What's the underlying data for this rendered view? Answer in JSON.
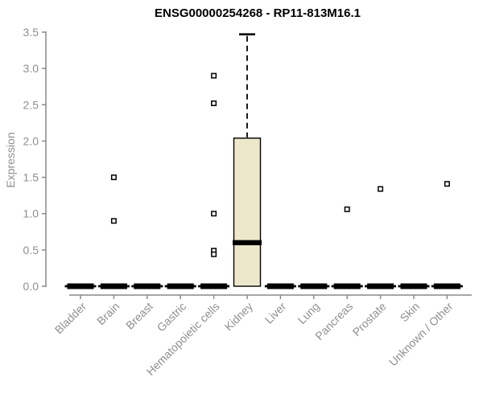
{
  "chart_data": {
    "type": "boxplot",
    "title": "ENSG00000254268 - RP11-813M16.1",
    "ylabel": "Expression",
    "xlabel": "",
    "ylim": [
      0,
      3.5
    ],
    "yticks": [
      0.0,
      0.5,
      1.0,
      1.5,
      2.0,
      2.5,
      3.0,
      3.5
    ],
    "grid": "off",
    "legend": "none",
    "categories": [
      "Bladder",
      "Brain",
      "Breast",
      "Gastric",
      "Hematopoietic cells",
      "Kidney",
      "Liver",
      "Lung",
      "Pancreas",
      "Prostate",
      "Skin",
      "Unknown / Other"
    ],
    "boxes": [
      {
        "category": "Bladder",
        "low": 0,
        "q1": 0,
        "median": 0,
        "q3": 0,
        "high": 0,
        "outliers": []
      },
      {
        "category": "Brain",
        "low": 0,
        "q1": 0,
        "median": 0,
        "q3": 0,
        "high": 0,
        "outliers": [
          1.5,
          0.9
        ]
      },
      {
        "category": "Breast",
        "low": 0,
        "q1": 0,
        "median": 0,
        "q3": 0,
        "high": 0,
        "outliers": []
      },
      {
        "category": "Gastric",
        "low": 0,
        "q1": 0,
        "median": 0,
        "q3": 0,
        "high": 0,
        "outliers": []
      },
      {
        "category": "Hematopoietic cells",
        "low": 0,
        "q1": 0,
        "median": 0,
        "q3": 0,
        "high": 0,
        "outliers": [
          2.9,
          2.52,
          1.0,
          0.49,
          0.44
        ]
      },
      {
        "category": "Kidney",
        "low": 0,
        "q1": 0,
        "median": 0.6,
        "q3": 2.04,
        "high": 3.47,
        "outliers": []
      },
      {
        "category": "Liver",
        "low": 0,
        "q1": 0,
        "median": 0,
        "q3": 0,
        "high": 0,
        "outliers": []
      },
      {
        "category": "Lung",
        "low": 0,
        "q1": 0,
        "median": 0,
        "q3": 0,
        "high": 0,
        "outliers": []
      },
      {
        "category": "Pancreas",
        "low": 0,
        "q1": 0,
        "median": 0,
        "q3": 0,
        "high": 0,
        "outliers": [
          1.06
        ]
      },
      {
        "category": "Prostate",
        "low": 0,
        "q1": 0,
        "median": 0,
        "q3": 0,
        "high": 0,
        "outliers": [
          1.34
        ]
      },
      {
        "category": "Skin",
        "low": 0,
        "q1": 0,
        "median": 0,
        "q3": 0,
        "high": 0,
        "outliers": []
      },
      {
        "category": "Unknown / Other",
        "low": 0,
        "q1": 0,
        "median": 0,
        "q3": 0,
        "high": 0,
        "outliers": [
          1.41
        ]
      }
    ],
    "colors": {
      "box_fill": "#EDE8CC",
      "box_border": "#000000",
      "median": "#000000",
      "whisker": "#000000",
      "outlier_border": "#000000",
      "outlier_fill": "#ffffff",
      "axis": "#8a8a8a",
      "tick_label": "#8f8f8f",
      "title": "#000000"
    }
  }
}
